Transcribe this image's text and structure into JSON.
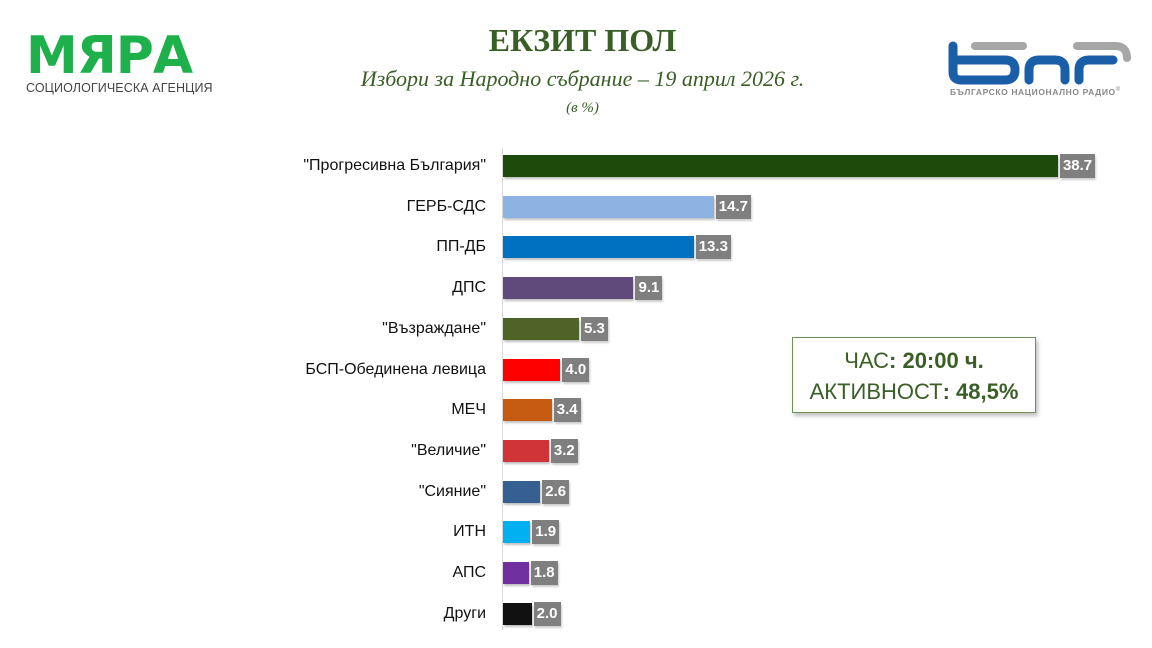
{
  "header": {
    "left_logo": {
      "name": "МЯРА",
      "tagline": "СОЦИОЛОГИЧЕСКА АГЕНЦИЯ",
      "color": "#1db04b"
    },
    "title": "ЕКЗИТ ПОЛ",
    "subtitle": "Избори за Народно събрание – 19 април 2026 г.",
    "unit": "(в %)",
    "right_logo": {
      "name": "БНР",
      "tagline": "БЪЛГАРСКО НАЦИОНАЛНО РАДИО",
      "registered": "®",
      "colors": {
        "primary": "#1a5ea8",
        "secondary": "#a6a6a6"
      }
    }
  },
  "info_box": {
    "time_label": "ЧАС",
    "time_value": ": 20:00 ч.",
    "turnout_label": "АКТИВНОСТ",
    "turnout_value": ": 48,5%"
  },
  "chart_data": {
    "type": "bar",
    "orientation": "horizontal",
    "title": "ЕКЗИТ ПОЛ",
    "subtitle": "Избори за Народно събрание – 19 април 2026 г.",
    "xlabel": "(в %)",
    "ylabel": "",
    "grid": false,
    "legend": null,
    "categories": [
      "\"Прогресивна България\"",
      "ГЕРБ-СДС",
      "ПП-ДБ",
      "ДПС",
      "\"Възраждане\"",
      "БСП-Обединена левица",
      "МЕЧ",
      "\"Величие\"",
      "\"Сияние\"",
      "ИТН",
      "АПС",
      "Други"
    ],
    "values": [
      38.7,
      14.7,
      13.3,
      9.1,
      5.3,
      4.0,
      3.4,
      3.2,
      2.6,
      1.9,
      1.8,
      2.0
    ],
    "value_labels": [
      "38.7",
      "14.7",
      "13.3",
      "9.1",
      "5.3",
      "4.0",
      "3.4",
      "3.2",
      "2.6",
      "1.9",
      "1.8",
      "2.0"
    ],
    "colors": [
      "#1e4a0b",
      "#8db3e2",
      "#0070c0",
      "#604a7b",
      "#4f6228",
      "#ff0000",
      "#c55a11",
      "#d13438",
      "#376092",
      "#00b0f0",
      "#7030a0",
      "#111111"
    ],
    "annotations": [
      "ЧАС: 20:00 ч.",
      "АКТИВНОСТ: 48,5%"
    ]
  }
}
